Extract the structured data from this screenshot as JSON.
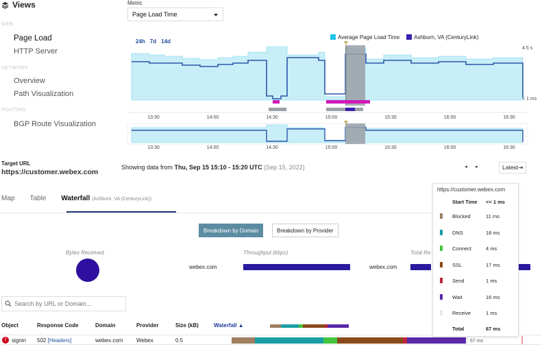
{
  "sidebar": {
    "title": "Views",
    "sections": [
      {
        "label": "WEB",
        "items": [
          "Page Load",
          "HTTP Server"
        ]
      },
      {
        "label": "NETWORK",
        "items": [
          "Overview",
          "Path Visualization"
        ]
      },
      {
        "label": "ROUTING",
        "items": [
          "BGP Route Visualization"
        ]
      }
    ]
  },
  "metric": {
    "label": "Metric",
    "value": "Page Load Time"
  },
  "range_buttons": [
    "24h",
    "7d",
    "14d"
  ],
  "legend": [
    {
      "name": "Average Page Load Time",
      "color": "#1ec3ea"
    },
    {
      "name": "Ashburn, VA (CenturyLink)",
      "color": "#3a1fae"
    }
  ],
  "chart_data": {
    "type": "area",
    "x_ticks": [
      "13:30",
      "14:00",
      "14:30",
      "15:00",
      "15:30",
      "16:00",
      "16:30"
    ],
    "y_top_label": "4.5 s",
    "y_bottom_label": "< 1 ms"
  },
  "target": {
    "label": "Target URL",
    "url": "https://customer.webex.com"
  },
  "showing": {
    "prefix": "Showing data from ",
    "range": "Thu, Sep 15 15:10 - 15:20 UTC",
    "sub": "(Sep 15, 2022)"
  },
  "pager": {
    "prev": "◂",
    "next": "▸",
    "latest": "Latest⇥"
  },
  "tabs": [
    {
      "label": "Map"
    },
    {
      "label": "Table"
    },
    {
      "label": "Waterfall",
      "sub": "(Ashburn, VA (CenturyLink))"
    }
  ],
  "breakdown": {
    "by_domain": "Breakdown by Domain",
    "by_provider": "Breakdown by Provider"
  },
  "summary": {
    "bytes_label": "Bytes Received",
    "throughput_label": "Throughput (kbps)",
    "total_label": "Total Re",
    "domain1": "webex.com",
    "domain2": "webex.com"
  },
  "search": {
    "placeholder": "Search by URL or Domain..."
  },
  "table": {
    "headers": [
      "Object",
      "Response Code",
      "Domain",
      "Provider",
      "Size (kB)",
      "Waterfall ▲"
    ],
    "row": {
      "object": "signin",
      "code": "502",
      "code_link": "[Headers]",
      "domain": "webex.com",
      "provider": "Webex",
      "size": "0.5",
      "total": "67 ms"
    }
  },
  "tooltip": {
    "title": "https://customer.webex.com",
    "start_label": "Start Time",
    "start_value": "<< 1 ms",
    "phases": [
      {
        "name": "Blocked",
        "value": "11 ms",
        "color": "#a08060"
      },
      {
        "name": "DNS",
        "value": "18 ms",
        "color": "#1a9ea6"
      },
      {
        "name": "Connect",
        "value": "4 ms",
        "color": "#43c43d"
      },
      {
        "name": "SSL",
        "value": "17 ms",
        "color": "#8a4a1a"
      },
      {
        "name": "Send",
        "value": "1 ms",
        "color": "#c0263a"
      },
      {
        "name": "Wait",
        "value": "16 ms",
        "color": "#5a28a8"
      },
      {
        "name": "Receive",
        "value": "1 ms",
        "color": "#e8e8e8"
      }
    ],
    "total_label": "Total",
    "total_value": "67 ms"
  }
}
